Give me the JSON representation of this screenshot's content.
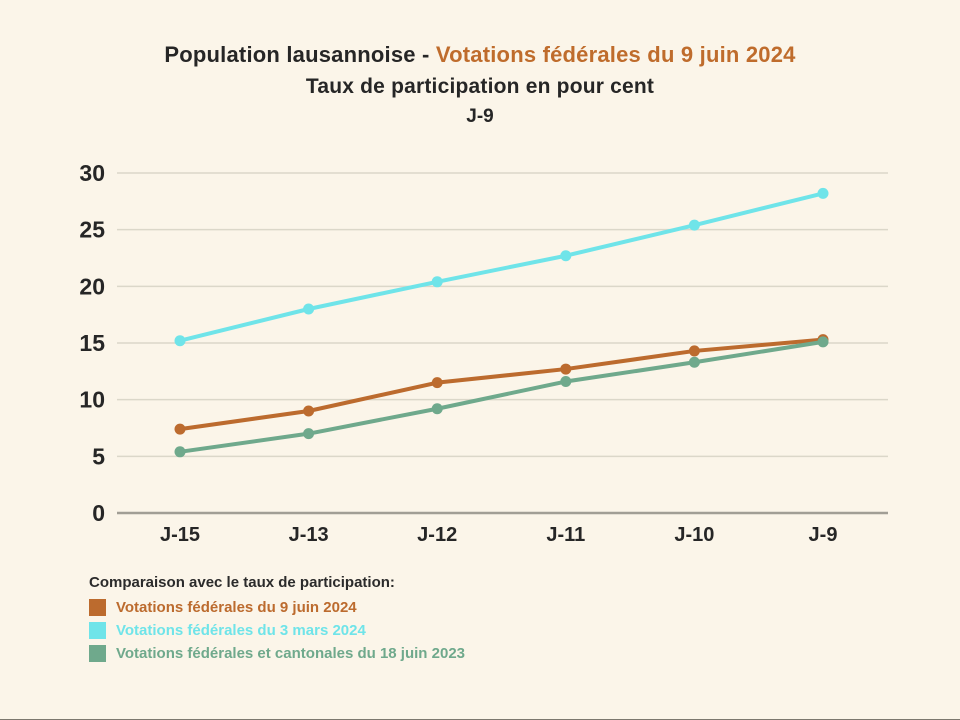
{
  "title": {
    "prefix": "Population lausannoise - ",
    "highlight": "Votations fédérales du 9 juin 2024",
    "subtitle": "Taux de participation en pour cent",
    "day_label": "J-9"
  },
  "legend": {
    "heading": "Comparaison avec le taux de participation:"
  },
  "colors": {
    "background": "#fbf5e9",
    "text_dark": "#262626",
    "title_accent": "#bf6c2c",
    "gridline": "#dbd7c9",
    "axis_line": "#a19e95"
  },
  "chart_data": {
    "type": "line",
    "title": "Population lausannoise - Votations fédérales du 9 juin 2024",
    "subtitle": "Taux de participation en pour cent (J-9)",
    "categories": [
      "J-15",
      "J-13",
      "J-12",
      "J-11",
      "J-10",
      "J-9"
    ],
    "y_ticks": [
      0,
      5,
      10,
      15,
      20,
      25,
      30
    ],
    "ylim": [
      0,
      30
    ],
    "grid": true,
    "legend_position": "bottom-left",
    "series": [
      {
        "name": "Votations fédérales du 9 juin 2024",
        "color": "#bc6b2e",
        "values": [
          7.4,
          9.0,
          11.5,
          12.7,
          14.3,
          15.3
        ]
      },
      {
        "name": "Votations fédérales du 3 mars 2024",
        "color": "#6fe4e9",
        "values": [
          15.2,
          18.0,
          20.4,
          22.7,
          25.4,
          28.2
        ]
      },
      {
        "name": "Votations fédérales et cantonales du 18 juin 2023",
        "color": "#6fa98c",
        "values": [
          5.4,
          7.0,
          9.2,
          11.6,
          13.3,
          15.1
        ]
      }
    ]
  }
}
